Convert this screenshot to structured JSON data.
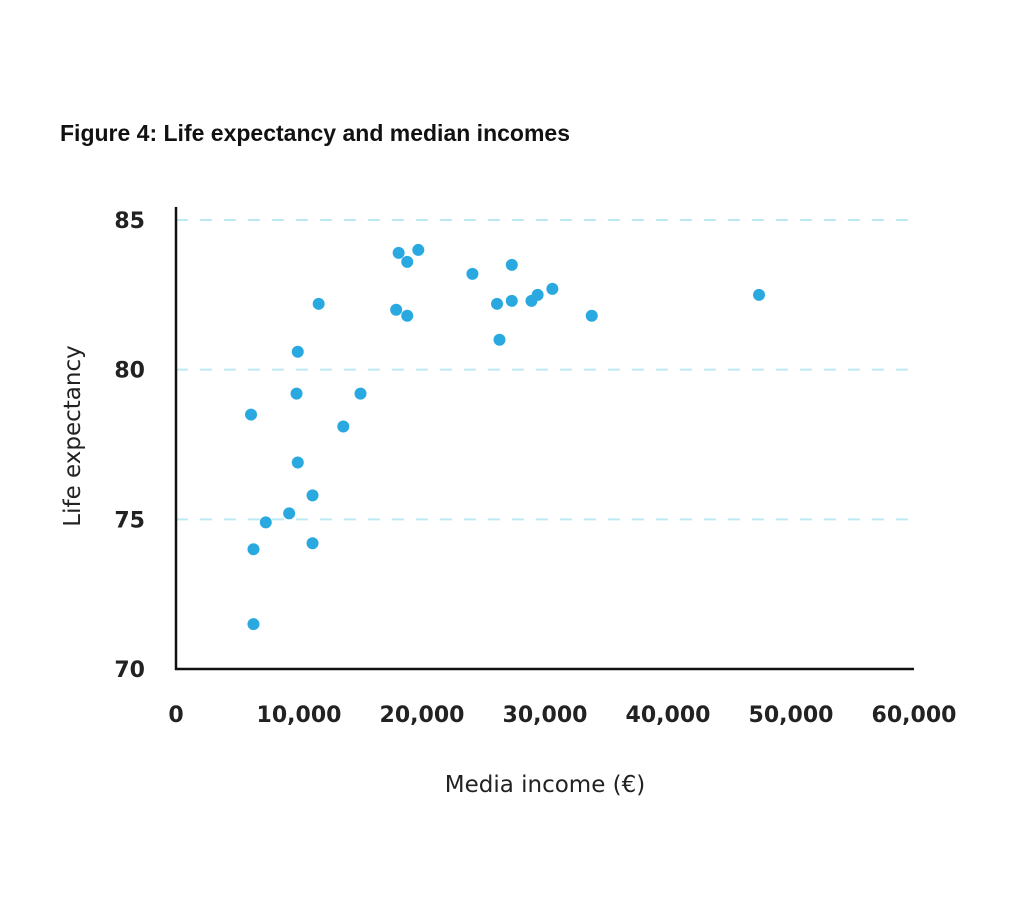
{
  "colors": {
    "point": "#29a9e0",
    "grid": "#bde9f5",
    "axis": "#111111"
  },
  "chart_data": {
    "type": "scatter",
    "title": "Figure 4: Life expectancy and median incomes",
    "xlabel": "Media income (€)",
    "ylabel": "Life expectancy",
    "xlim": [
      0,
      60000
    ],
    "ylim": [
      70,
      85
    ],
    "xticks": [
      0,
      10000,
      20000,
      30000,
      40000,
      50000,
      60000
    ],
    "xtick_labels": [
      "0",
      "10,000",
      "20,000",
      "30,000",
      "40,000",
      "50,000",
      "60,000"
    ],
    "yticks": [
      70,
      75,
      80,
      85
    ],
    "ytick_labels": [
      "70",
      "75",
      "80",
      "85"
    ],
    "grid": "horizontal dashed at 75, 80, 85",
    "points": [
      {
        "x": 6100,
        "y": 78.5
      },
      {
        "x": 6300,
        "y": 74.0
      },
      {
        "x": 6300,
        "y": 71.5
      },
      {
        "x": 7300,
        "y": 74.9
      },
      {
        "x": 9200,
        "y": 75.2
      },
      {
        "x": 9800,
        "y": 79.2
      },
      {
        "x": 9900,
        "y": 80.6
      },
      {
        "x": 9900,
        "y": 76.9
      },
      {
        "x": 11100,
        "y": 75.8
      },
      {
        "x": 11100,
        "y": 74.2
      },
      {
        "x": 11600,
        "y": 82.2
      },
      {
        "x": 13600,
        "y": 78.1
      },
      {
        "x": 15000,
        "y": 79.2
      },
      {
        "x": 17900,
        "y": 82.0
      },
      {
        "x": 18100,
        "y": 83.9
      },
      {
        "x": 18800,
        "y": 83.6
      },
      {
        "x": 18800,
        "y": 81.8
      },
      {
        "x": 19700,
        "y": 84.0
      },
      {
        "x": 24100,
        "y": 83.2
      },
      {
        "x": 26100,
        "y": 82.2
      },
      {
        "x": 26300,
        "y": 81.0
      },
      {
        "x": 27300,
        "y": 82.3
      },
      {
        "x": 27300,
        "y": 83.5
      },
      {
        "x": 28900,
        "y": 82.3
      },
      {
        "x": 29400,
        "y": 82.5
      },
      {
        "x": 30600,
        "y": 82.7
      },
      {
        "x": 33800,
        "y": 81.8
      },
      {
        "x": 47400,
        "y": 82.5
      }
    ]
  }
}
